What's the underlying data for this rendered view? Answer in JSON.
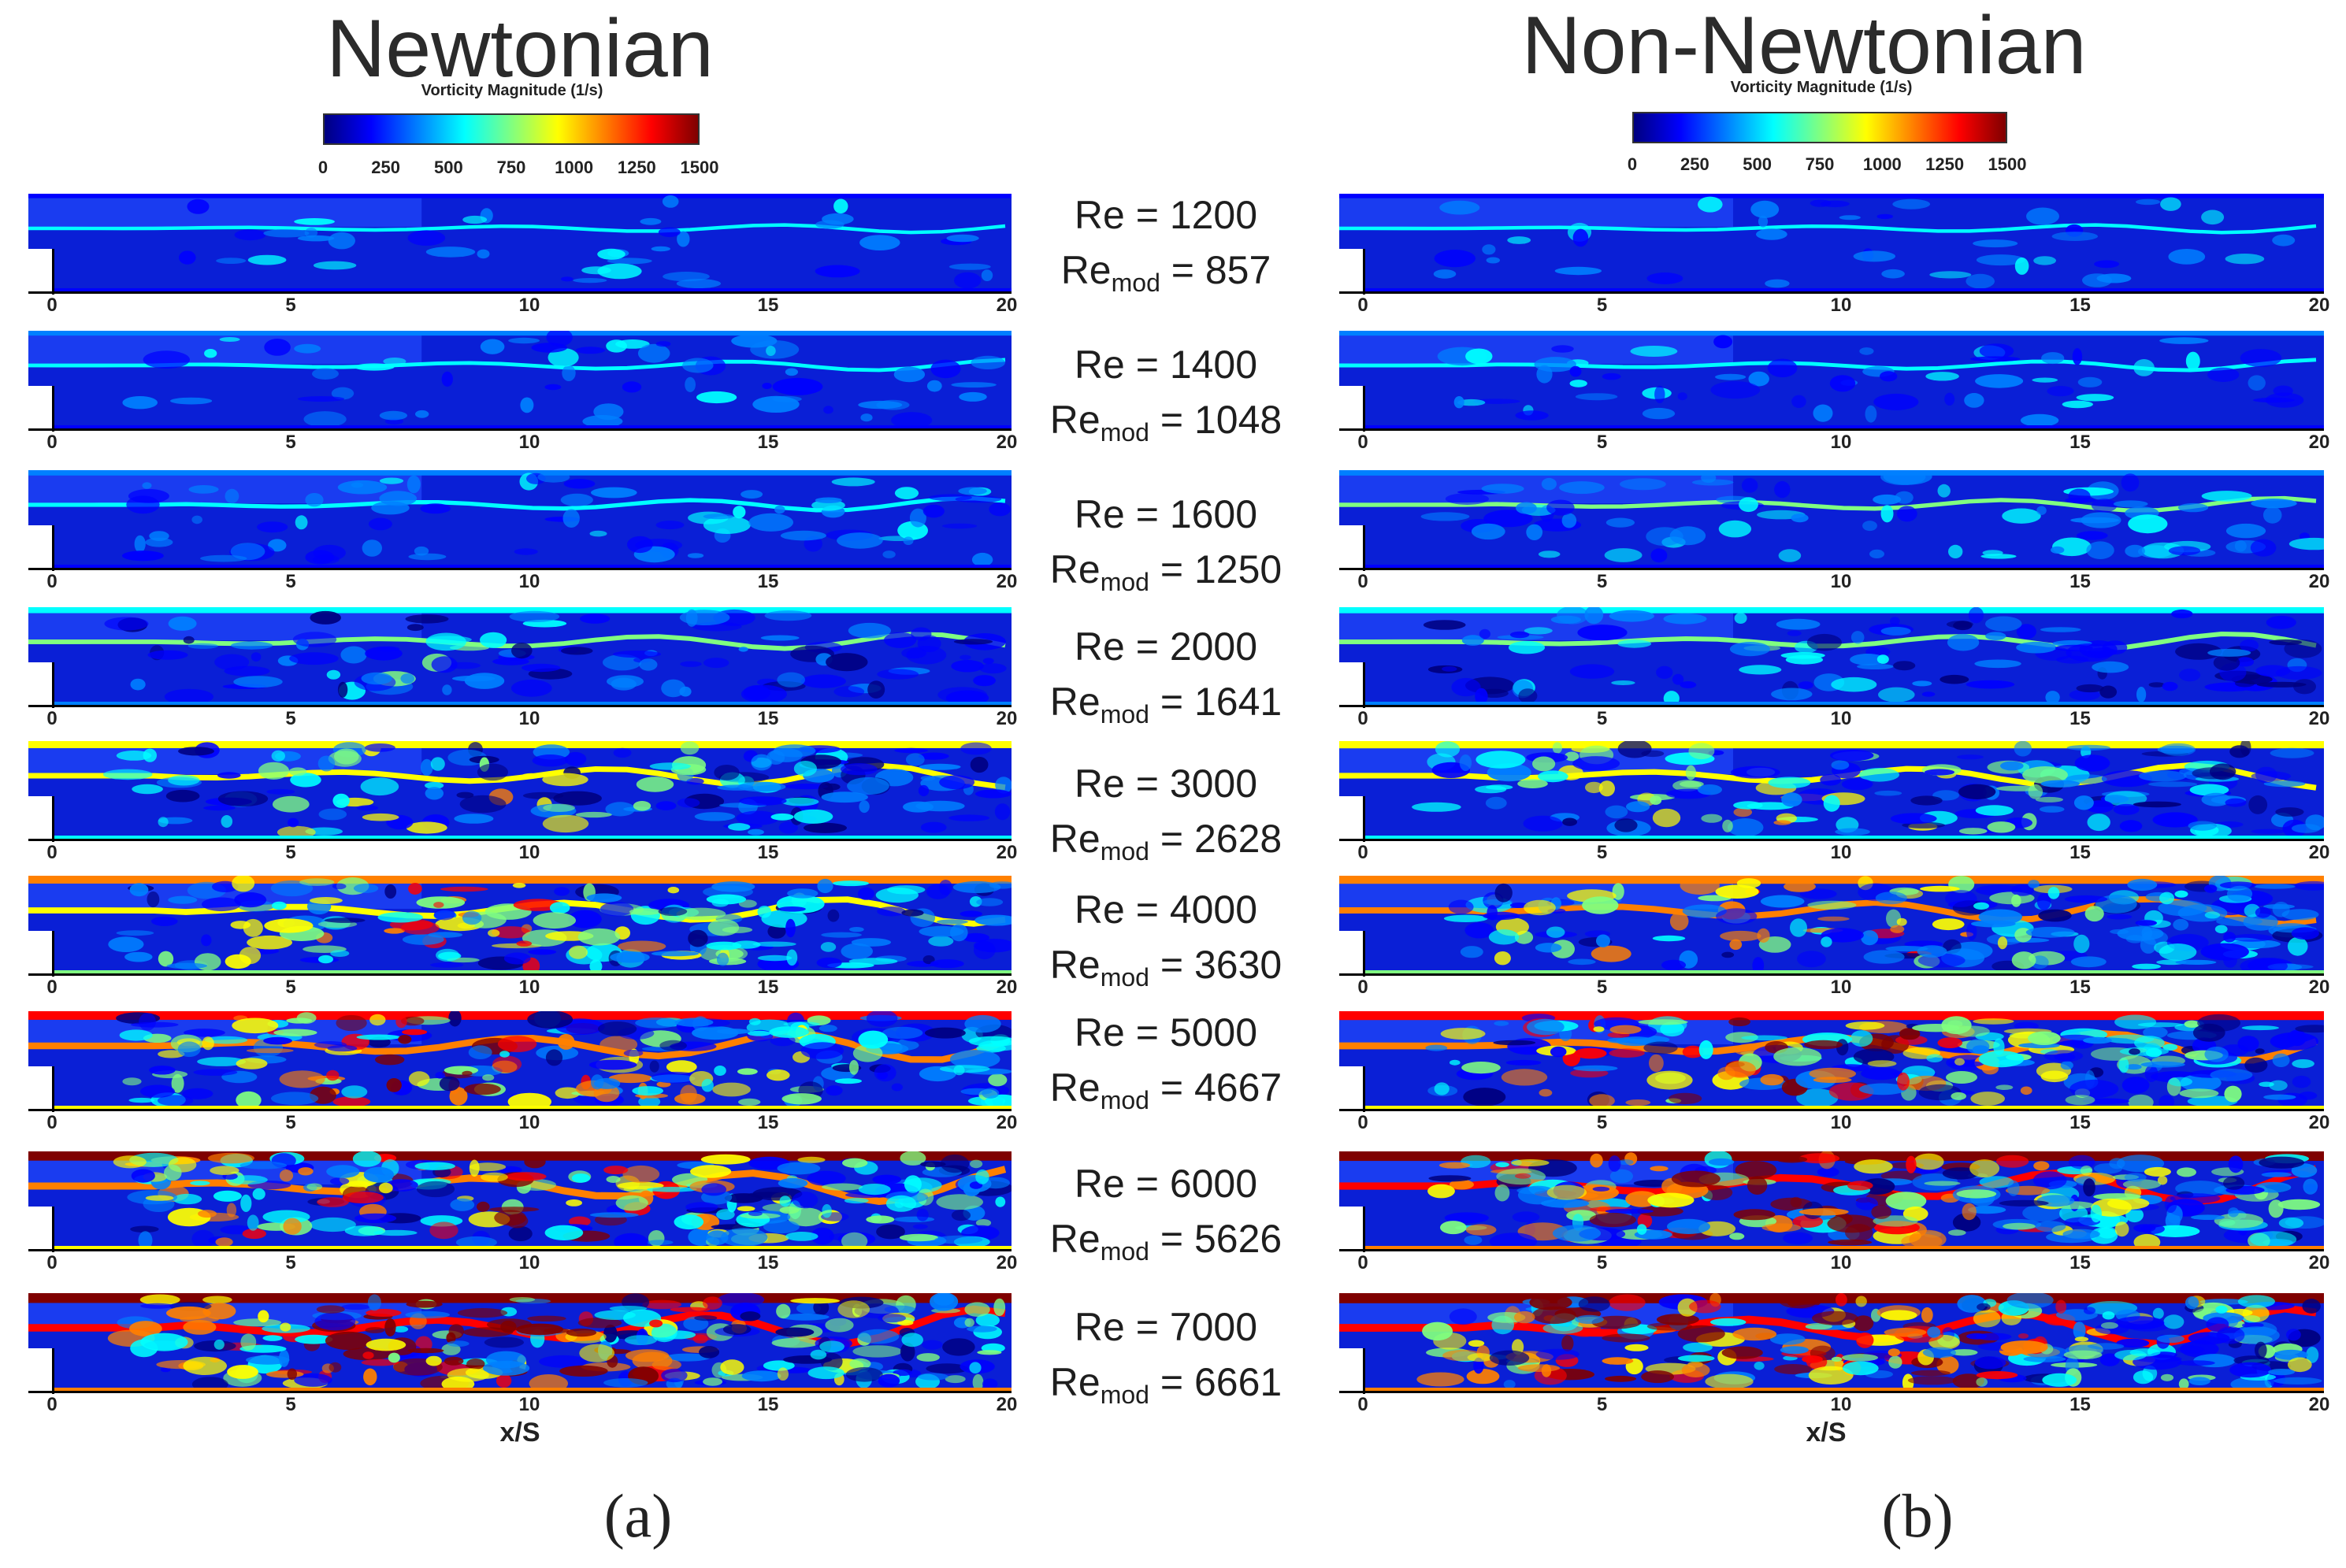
{
  "titles": {
    "left": "Newtonian",
    "right": "Non-Newtonian"
  },
  "colorbar": {
    "title": "Vorticity Magnitude (1/s)",
    "ticks": [
      "0",
      "250",
      "500",
      "750",
      "1000",
      "1250",
      "1500"
    ],
    "colors": [
      "#00007f",
      "#0000ff",
      "#0080ff",
      "#00ffff",
      "#80ff80",
      "#ffff00",
      "#ff8000",
      "#ff0000",
      "#7f0000"
    ]
  },
  "x_axis": {
    "label": "x/S",
    "ticks": [
      "0",
      "5",
      "10",
      "15",
      "20"
    ]
  },
  "cases": [
    {
      "re": "Re = 1200",
      "remod_prefix": "Re",
      "remod_sub": "mod",
      "remod_value": " = 857",
      "intensity": 0.08
    },
    {
      "re": "Re = 1400",
      "remod_prefix": "Re",
      "remod_sub": "mod",
      "remod_value": " = 1048",
      "intensity": 0.14
    },
    {
      "re": "Re = 1600",
      "remod_prefix": "Re",
      "remod_sub": "mod",
      "remod_value": " = 1250",
      "intensity": 0.22
    },
    {
      "re": "Re = 2000",
      "remod_prefix": "Re",
      "remod_sub": "mod",
      "remod_value": " = 1641",
      "intensity": 0.32
    },
    {
      "re": "Re = 3000",
      "remod_prefix": "Re",
      "remod_sub": "mod",
      "remod_value": " = 2628",
      "intensity": 0.5
    },
    {
      "re": "Re = 4000",
      "remod_prefix": "Re",
      "remod_sub": "mod",
      "remod_value": " = 3630",
      "intensity": 0.62
    },
    {
      "re": "Re = 5000",
      "remod_prefix": "Re",
      "remod_sub": "mod",
      "remod_value": " = 4667",
      "intensity": 0.74
    },
    {
      "re": "Re = 6000",
      "remod_prefix": "Re",
      "remod_sub": "mod",
      "remod_value": " = 5626",
      "intensity": 0.84
    },
    {
      "re": "Re = 7000",
      "remod_prefix": "Re",
      "remod_sub": "mod",
      "remod_value": " = 6661",
      "intensity": 0.93
    }
  ],
  "sublabels": {
    "left": "(a)",
    "right": "(b)"
  }
}
